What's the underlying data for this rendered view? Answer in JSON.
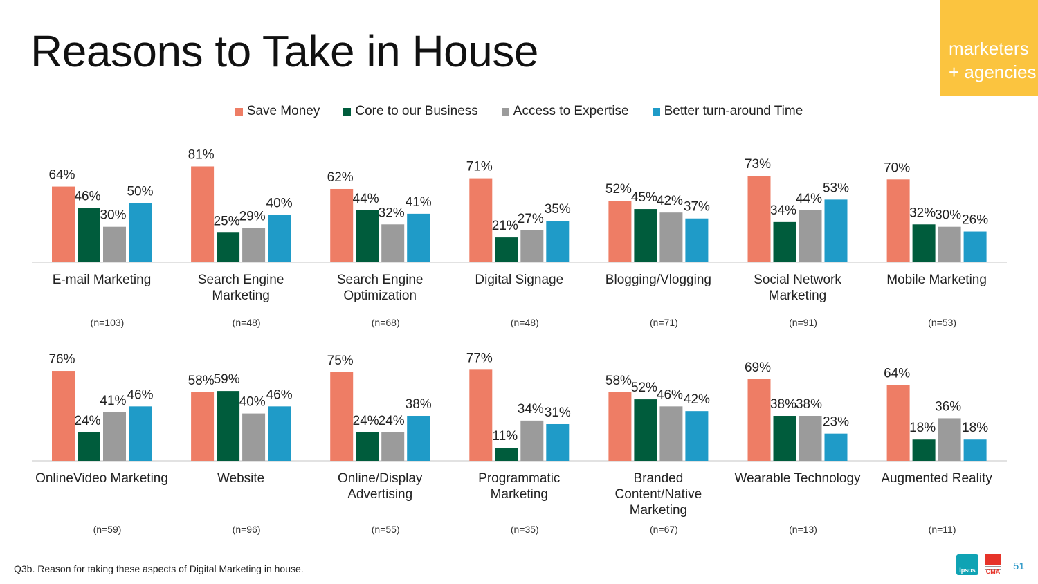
{
  "title": "Reasons to Take in House",
  "tag": {
    "line1": "marketers",
    "line2": "+ agencies"
  },
  "legend": [
    {
      "label": "Save Money",
      "color": "#EE7D65"
    },
    {
      "label": "Core to our Business",
      "color": "#005C3C"
    },
    {
      "label": "Access to Expertise",
      "color": "#9B9B9B"
    },
    {
      "label": "Better turn-around Time",
      "color": "#1F9BC8"
    }
  ],
  "footnote": "Q3b. Reason for taking these aspects of Digital Marketing in house.",
  "logos": {
    "ipsos": "Ipsos",
    "cma": "CMA"
  },
  "page_number": "51",
  "chart_data": [
    {
      "type": "bar",
      "title": "",
      "ylim": [
        0,
        100
      ],
      "grid": false,
      "legend_position": "top-center",
      "series_names": [
        "Save Money",
        "Core to our Business",
        "Access to Expertise",
        "Better turn-around Time"
      ],
      "groups": [
        {
          "label": [
            "E-mail Marketing"
          ],
          "n": "(n=103)",
          "values": [
            64,
            46,
            30,
            50
          ],
          "labels": [
            "64%",
            "46%",
            "30%",
            "50%"
          ]
        },
        {
          "label": [
            "Search Engine",
            "Marketing"
          ],
          "n": "(n=48)",
          "values": [
            81,
            25,
            29,
            40
          ],
          "labels": [
            "81%",
            "25%",
            "29%",
            "40%"
          ]
        },
        {
          "label": [
            "Search Engine",
            "Optimization"
          ],
          "n": "(n=68)",
          "values": [
            62,
            44,
            32,
            41
          ],
          "labels": [
            "62%",
            "44%",
            "32%",
            "41%"
          ]
        },
        {
          "label": [
            "Digital Signage"
          ],
          "n": "(n=48)",
          "values": [
            71,
            21,
            27,
            35
          ],
          "labels": [
            "71%",
            "21%",
            "27%",
            "35%"
          ]
        },
        {
          "label": [
            "Blogging/Vlogging"
          ],
          "n": "(n=71)",
          "values": [
            52,
            45,
            42,
            37
          ],
          "labels": [
            "52%",
            "45%",
            "42%",
            "37%"
          ]
        },
        {
          "label": [
            "Social Network",
            "Marketing"
          ],
          "n": "(n=91)",
          "values": [
            73,
            34,
            44,
            53
          ],
          "labels": [
            "73%",
            "34%",
            "44%",
            "53%"
          ]
        },
        {
          "label": [
            "Mobile Marketing"
          ],
          "n": "(n=53)",
          "values": [
            70,
            32,
            30,
            26
          ],
          "labels": [
            "70%",
            "32%",
            "30%",
            "26%"
          ]
        }
      ]
    },
    {
      "type": "bar",
      "title": "",
      "ylim": [
        0,
        100
      ],
      "grid": false,
      "legend_position": "top-center",
      "series_names": [
        "Save Money",
        "Core to our Business",
        "Access to Expertise",
        "Better turn-around Time"
      ],
      "groups": [
        {
          "label": [
            "OnlineVideo Marketing"
          ],
          "n": "(n=59)",
          "values": [
            76,
            24,
            41,
            46
          ],
          "labels": [
            "76%",
            "24%",
            "41%",
            "46%"
          ]
        },
        {
          "label": [
            "Website"
          ],
          "n": "(n=96)",
          "values": [
            58,
            59,
            40,
            46
          ],
          "labels": [
            "58%",
            "59%",
            "40%",
            "46%"
          ]
        },
        {
          "label": [
            "Online/Display",
            "Advertising"
          ],
          "n": "(n=55)",
          "values": [
            75,
            24,
            24,
            38
          ],
          "labels": [
            "75%",
            "24%",
            "24%",
            "38%"
          ]
        },
        {
          "label": [
            "Programmatic",
            "Marketing"
          ],
          "n": "(n=35)",
          "values": [
            77,
            11,
            34,
            31
          ],
          "labels": [
            "77%",
            "11%",
            "34%",
            "31%"
          ]
        },
        {
          "label": [
            "Branded",
            "Content/Native",
            "Marketing"
          ],
          "n": "(n=67)",
          "values": [
            58,
            52,
            46,
            42
          ],
          "labels": [
            "58%",
            "52%",
            "46%",
            "42%"
          ]
        },
        {
          "label": [
            "Wearable Technology"
          ],
          "n": "(n=13)",
          "values": [
            69,
            38,
            38,
            23
          ],
          "labels": [
            "69%",
            "38%",
            "38%",
            "23%"
          ]
        },
        {
          "label": [
            "Augmented Reality"
          ],
          "n": "(n=11)",
          "values": [
            64,
            18,
            36,
            18
          ],
          "labels": [
            "64%",
            "18%",
            "36%",
            "18%"
          ]
        }
      ]
    }
  ]
}
